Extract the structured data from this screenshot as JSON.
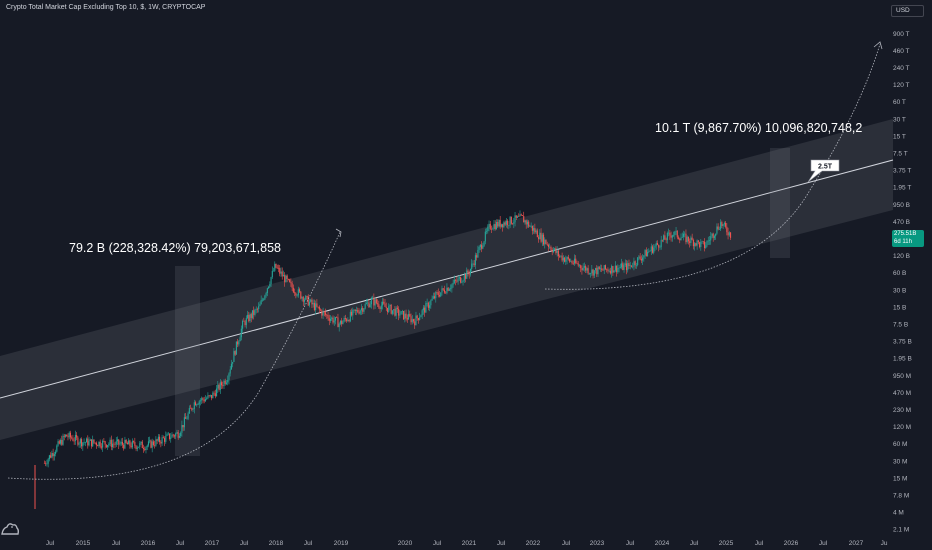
{
  "header": {
    "title": "Crypto Total Market Cap Excluding Top 10, $, 1W, CRYPTOCAP",
    "currency": "USD"
  },
  "price_tag": {
    "value": "275.51B",
    "countdown": "6d 11h"
  },
  "colors": {
    "background": "#161a25",
    "up": "#26a69a",
    "down": "#ef5350",
    "channel_fill": "#787b86",
    "line": "#d1d4dc",
    "tag": "#089981"
  },
  "icons": {
    "logo": "tradingview-logo-icon"
  },
  "annotations": {
    "left_gain": "79.2 B (228,328.42%) 79,203,671,858",
    "right_gain": "10.1 T (9,867.70%) 10,096,820,748,2",
    "target_label": "2.5T"
  },
  "chart_data": {
    "type": "candlestick",
    "title": "Crypto Total Market Cap Excluding Top 10, $, 1W, CRYPTOCAP",
    "y_scale": "log",
    "y_ticks": [
      "900 T",
      "460 T",
      "240 T",
      "120 T",
      "60 T",
      "30 T",
      "15 T",
      "7.5 T",
      "3.75 T",
      "1.95 T",
      "950 B",
      "470 B",
      "240 B",
      "120 B",
      "60 B",
      "30 B",
      "15 B",
      "7.5 B",
      "3.75 B",
      "1.95 B",
      "950 M",
      "470 M",
      "230 M",
      "120 M",
      "60 M",
      "30 M",
      "15 M",
      "7.8 M",
      "4 M",
      "2.1 M"
    ],
    "x_ticks": [
      "Jul",
      "2015",
      "Jul",
      "2016",
      "Jul",
      "2017",
      "Jul",
      "2018",
      "Jul",
      "2019",
      "2020",
      "Jul",
      "2021",
      "Jul",
      "2022",
      "Jul",
      "2023",
      "Jul",
      "2024",
      "Jul",
      "2025",
      "Jul",
      "2026",
      "Jul",
      "2027",
      "Ju"
    ],
    "last_price": "275.51B",
    "series": [
      {
        "values_approx_usd": [
          [
            "2014-06",
            30000000.0
          ],
          [
            "2014-10",
            90000000.0
          ],
          [
            "2015-01",
            70000000.0
          ],
          [
            "2015-07",
            65000000.0
          ],
          [
            "2016-01",
            60000000.0
          ],
          [
            "2016-07",
            100000000.0
          ],
          [
            "2016-10",
            350000000.0
          ],
          [
            "2017-01",
            420000000.0
          ],
          [
            "2017-04",
            900000000.0
          ],
          [
            "2017-07",
            8000000000.0
          ],
          [
            "2017-10",
            15000000000.0
          ],
          [
            "2018-01",
            79000000000.0
          ],
          [
            "2018-04",
            35000000000.0
          ],
          [
            "2018-07",
            20000000000.0
          ],
          [
            "2018-10",
            12000000000.0
          ],
          [
            "2019-01",
            8000000000.0
          ],
          [
            "2019-07",
            20000000000.0
          ],
          [
            "2020-03",
            9000000000.0
          ],
          [
            "2020-07",
            25000000000.0
          ],
          [
            "2021-01",
            60000000000.0
          ],
          [
            "2021-05",
            400000000000.0
          ],
          [
            "2021-11",
            550000000000.0
          ],
          [
            "2022-06",
            120000000000.0
          ],
          [
            "2022-12",
            65000000000.0
          ],
          [
            "2023-07",
            80000000000.0
          ],
          [
            "2024-03",
            300000000000.0
          ],
          [
            "2024-09",
            180000000000.0
          ],
          [
            "2024-12",
            450000000000.0
          ],
          [
            "2025-02",
            275500000000.0
          ]
        ]
      }
    ]
  }
}
